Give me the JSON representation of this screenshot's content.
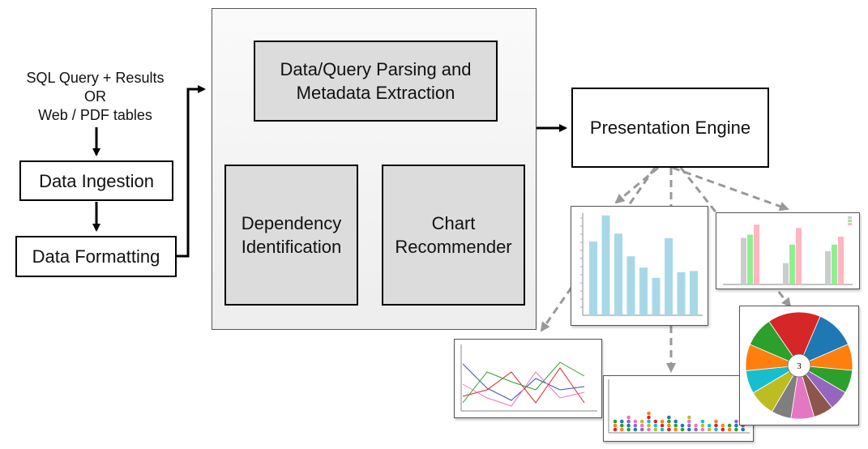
{
  "input": {
    "line1": "SQL Query + Results",
    "line2": "OR",
    "line3": "Web / PDF tables"
  },
  "pipeline": {
    "ingestion": "Data Ingestion",
    "formatting": "Data Formatting"
  },
  "core": {
    "parsing": "Data/Query Parsing and\nMetadata Extraction",
    "dependency": "Dependency\nIdentification",
    "recommender": "Chart\nRecommender"
  },
  "output": {
    "presentation": "Presentation Engine"
  },
  "thumbnails": {
    "pie_center_label": "3",
    "pie_colors": [
      "#d62728",
      "#1f77b4",
      "#ff7f0e",
      "#2ca02c",
      "#9467bd",
      "#8c564b",
      "#e377c2",
      "#7f7f7f",
      "#bcbd22",
      "#17becf",
      "#ff7f0e",
      "#2ca02c"
    ],
    "bar_color": "#a8d8e8",
    "grouped_colors": [
      "#cccccc",
      "#90ee90",
      "#ffb6c1"
    ],
    "line_colors": [
      "#3b4cc0",
      "#d62728",
      "#2ca02c",
      "#e377c2"
    ],
    "dot_colors": [
      "#d62728",
      "#ff7f0e",
      "#2ca02c",
      "#1f77b4",
      "#9467bd",
      "#e377c2",
      "#bcbd22",
      "#17becf"
    ]
  },
  "colors": {
    "box_grey": "#dcdcdd",
    "arrow_dash": "#999999"
  }
}
